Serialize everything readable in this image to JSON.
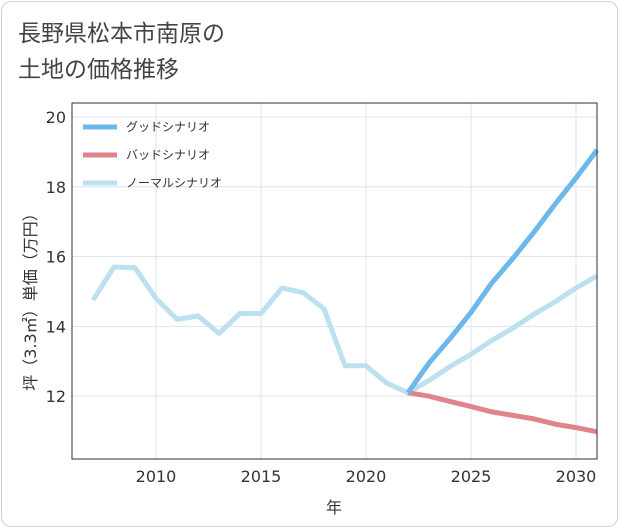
{
  "title": {
    "line1": "長野県松本市南原の",
    "line2": "土地の価格推移"
  },
  "colors": {
    "good": "#6cb8ec",
    "bad": "#e0848c",
    "normal": "#bde0f0",
    "grid": "#d8e4ee",
    "frame": "#2f2f2f"
  },
  "chart_data": {
    "type": "line",
    "xlabel": "年",
    "ylabel": "坪（3.3㎡）単価（万円）",
    "xlim": [
      2006,
      2031
    ],
    "ylim": [
      10.2,
      20.4
    ],
    "xticks": [
      2010,
      2015,
      2020,
      2025,
      2030
    ],
    "yticks": [
      12,
      14,
      16,
      18,
      20
    ],
    "grid": true,
    "legend_position": "top-left",
    "series": [
      {
        "name": "グッドシナリオ",
        "color": "#6cb8ec",
        "x": [
          2022,
          2023,
          2024,
          2025,
          2026,
          2027,
          2028,
          2029,
          2030,
          2031
        ],
        "y": [
          12.1,
          12.95,
          13.65,
          14.4,
          15.25,
          15.95,
          16.7,
          17.5,
          18.25,
          19.05
        ]
      },
      {
        "name": "バッドシナリオ",
        "color": "#e0848c",
        "x": [
          2022,
          2023,
          2024,
          2025,
          2026,
          2027,
          2028,
          2029,
          2030,
          2031
        ],
        "y": [
          12.1,
          12.0,
          11.85,
          11.7,
          11.55,
          11.45,
          11.35,
          11.2,
          11.1,
          10.98
        ]
      },
      {
        "name": "ノーマルシナリオ",
        "color": "#bde0f0",
        "x": [
          2007,
          2008,
          2009,
          2010,
          2011,
          2012,
          2013,
          2014,
          2015,
          2016,
          2017,
          2018,
          2019,
          2020,
          2021,
          2022,
          2023,
          2024,
          2025,
          2026,
          2027,
          2028,
          2029,
          2030,
          2031
        ],
        "y": [
          14.75,
          15.7,
          15.68,
          14.8,
          14.2,
          14.3,
          13.8,
          14.37,
          14.37,
          15.1,
          14.97,
          14.5,
          12.87,
          12.87,
          12.37,
          12.1,
          12.45,
          12.85,
          13.2,
          13.6,
          13.95,
          14.35,
          14.7,
          15.1,
          15.45
        ]
      }
    ]
  }
}
